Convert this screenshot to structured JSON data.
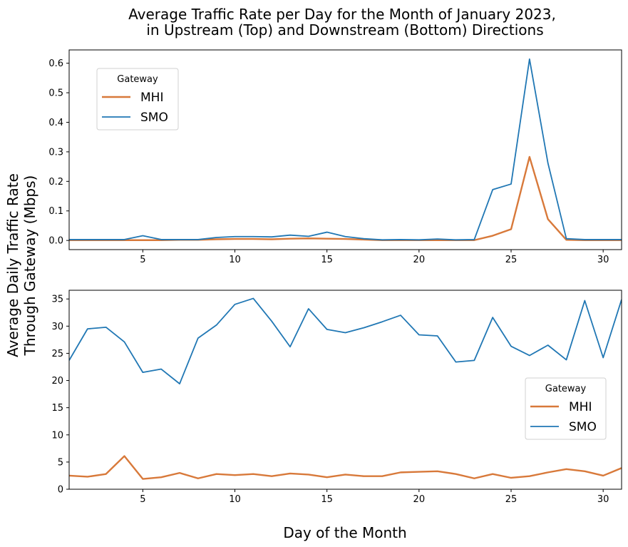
{
  "figure": {
    "title_line1": "Average Traffic Rate per Day for the Month of January 2023,",
    "title_line2": "in Upstream (Top) and Downstream (Bottom) Directions",
    "ylabel_line1": "Average Daily Traffic Rate",
    "ylabel_line2": "Through Gateway (Mbps)",
    "xlabel": "Day of the Month"
  },
  "colors": {
    "MHI": "#d8793a",
    "SMO": "#2077b4"
  },
  "chart_data": [
    {
      "type": "line",
      "x": [
        1,
        2,
        3,
        4,
        5,
        6,
        7,
        8,
        9,
        10,
        11,
        12,
        13,
        14,
        15,
        16,
        17,
        18,
        19,
        20,
        21,
        22,
        23,
        24,
        25,
        26,
        27,
        28,
        29,
        30,
        31
      ],
      "xlim": [
        1,
        31
      ],
      "ylim": [
        -0.031,
        0.645
      ],
      "xticks": [
        5,
        10,
        15,
        20,
        25,
        30
      ],
      "yticks": [
        0.0,
        0.1,
        0.2,
        0.3,
        0.4,
        0.5,
        0.6
      ],
      "ytick_labels": [
        "0.0",
        "0.1",
        "0.2",
        "0.3",
        "0.4",
        "0.5",
        "0.6"
      ],
      "legend": {
        "title": "Gateway",
        "position": "upper-left"
      },
      "series": [
        {
          "name": "MHI",
          "values": [
            0.001,
            0.001,
            0.001,
            0.001,
            0.001,
            0.001,
            0.002,
            0.002,
            0.004,
            0.005,
            0.005,
            0.004,
            0.006,
            0.007,
            0.006,
            0.005,
            0.003,
            0.001,
            0.001,
            0.001,
            0.001,
            0.001,
            0.001,
            0.016,
            0.038,
            0.283,
            0.072,
            0.002,
            0.001,
            0.001,
            0.001
          ]
        },
        {
          "name": "SMO",
          "values": [
            0.003,
            0.003,
            0.003,
            0.003,
            0.016,
            0.003,
            0.003,
            0.003,
            0.01,
            0.013,
            0.013,
            0.012,
            0.018,
            0.014,
            0.028,
            0.013,
            0.006,
            0.002,
            0.003,
            0.002,
            0.005,
            0.002,
            0.003,
            0.172,
            0.191,
            0.614,
            0.262,
            0.006,
            0.003,
            0.003,
            0.003
          ]
        }
      ]
    },
    {
      "type": "line",
      "x": [
        1,
        2,
        3,
        4,
        5,
        6,
        7,
        8,
        9,
        10,
        11,
        12,
        13,
        14,
        15,
        16,
        17,
        18,
        19,
        20,
        21,
        22,
        23,
        24,
        25,
        26,
        27,
        28,
        29,
        30,
        31
      ],
      "xlim": [
        1,
        31
      ],
      "ylim": [
        0,
        36.6
      ],
      "xticks": [
        5,
        10,
        15,
        20,
        25,
        30
      ],
      "yticks": [
        0,
        5,
        10,
        15,
        20,
        25,
        30,
        35
      ],
      "ytick_labels": [
        "0",
        "5",
        "10",
        "15",
        "20",
        "25",
        "30",
        "35"
      ],
      "legend": {
        "title": "Gateway",
        "position": "center-right"
      },
      "series": [
        {
          "name": "MHI",
          "values": [
            2.5,
            2.3,
            2.8,
            6.1,
            1.9,
            2.2,
            3.0,
            2.0,
            2.8,
            2.6,
            2.8,
            2.4,
            2.9,
            2.7,
            2.2,
            2.7,
            2.4,
            2.4,
            3.1,
            3.2,
            3.3,
            2.8,
            2.0,
            2.8,
            2.1,
            2.4,
            3.1,
            3.7,
            3.3,
            2.5,
            3.9
          ]
        },
        {
          "name": "SMO",
          "values": [
            23.7,
            29.5,
            29.8,
            27.1,
            21.5,
            22.1,
            19.4,
            27.8,
            30.2,
            34.0,
            35.1,
            30.9,
            26.2,
            33.2,
            29.4,
            28.8,
            29.7,
            30.8,
            32.0,
            28.4,
            28.2,
            23.4,
            23.7,
            31.6,
            26.3,
            24.6,
            26.5,
            23.8,
            34.7,
            24.2,
            34.9
          ]
        }
      ]
    }
  ]
}
